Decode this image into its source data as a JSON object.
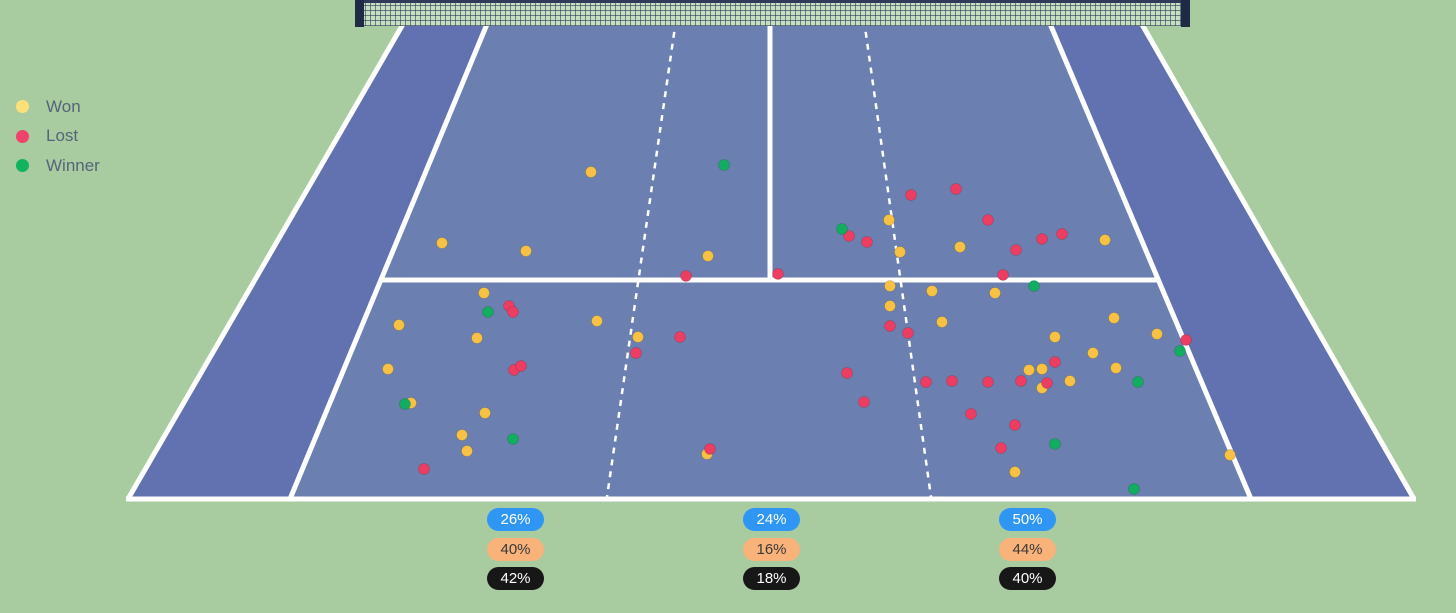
{
  "legend": [
    {
      "label": "Won",
      "color": "#fde077"
    },
    {
      "label": "Lost",
      "color": "#f0436b"
    },
    {
      "label": "Winner",
      "color": "#10b35f"
    }
  ],
  "colors": {
    "background": "#a9cba0",
    "court": "#6272b0",
    "service_box": "#6b82b0",
    "lines": "#ffffff",
    "net": "#2f3a5a",
    "won_dot": "#f7c244",
    "lost_dot": "#ee3d62",
    "winner_dot": "#13ad62"
  },
  "zones": [
    {
      "name": "left",
      "pills": [
        {
          "text": "26%",
          "bg": "#2f96f3",
          "fg": "#ffffff"
        },
        {
          "text": "40%",
          "bg": "#f8b27a",
          "fg": "#3a3a3a"
        },
        {
          "text": "42%",
          "bg": "#171717",
          "fg": "#ffffff"
        }
      ]
    },
    {
      "name": "middle",
      "pills": [
        {
          "text": "24%",
          "bg": "#2f96f3",
          "fg": "#ffffff"
        },
        {
          "text": "16%",
          "bg": "#f8b27a",
          "fg": "#3a3a3a"
        },
        {
          "text": "18%",
          "bg": "#171717",
          "fg": "#ffffff"
        }
      ]
    },
    {
      "name": "right",
      "pills": [
        {
          "text": "50%",
          "bg": "#2f96f3",
          "fg": "#ffffff"
        },
        {
          "text": "44%",
          "bg": "#f8b27a",
          "fg": "#3a3a3a"
        },
        {
          "text": "40%",
          "bg": "#171717",
          "fg": "#ffffff"
        }
      ]
    }
  ],
  "chart_data": {
    "type": "scatter",
    "legend_placement": "top-left",
    "series": [
      {
        "name": "Won",
        "points": [
          [
            591,
            172
          ],
          [
            442,
            243
          ],
          [
            526,
            251
          ],
          [
            708,
            256
          ],
          [
            889,
            220
          ],
          [
            900,
            252
          ],
          [
            960,
            247
          ],
          [
            1105,
            240
          ],
          [
            484,
            293
          ],
          [
            399,
            325
          ],
          [
            477,
            338
          ],
          [
            597,
            321
          ],
          [
            638,
            337
          ],
          [
            388,
            369
          ],
          [
            411,
            403
          ],
          [
            485,
            413
          ],
          [
            462,
            435
          ],
          [
            467,
            451
          ],
          [
            707,
            454
          ],
          [
            890,
            286
          ],
          [
            890,
            306
          ],
          [
            932,
            291
          ],
          [
            942,
            322
          ],
          [
            995,
            293
          ],
          [
            1055,
            337
          ],
          [
            1114,
            318
          ],
          [
            1157,
            334
          ],
          [
            1093,
            353
          ],
          [
            1116,
            368
          ],
          [
            1029,
            370
          ],
          [
            1042,
            369
          ],
          [
            1042,
            388
          ],
          [
            1070,
            381
          ],
          [
            1230,
            455
          ],
          [
            1015,
            472
          ]
        ]
      },
      {
        "name": "Lost",
        "points": [
          [
            911,
            195
          ],
          [
            956,
            189
          ],
          [
            988,
            220
          ],
          [
            849,
            236
          ],
          [
            867,
            242
          ],
          [
            1016,
            250
          ],
          [
            1042,
            239
          ],
          [
            1062,
            234
          ],
          [
            686,
            276
          ],
          [
            778,
            274
          ],
          [
            1003,
            275
          ],
          [
            509,
            306
          ],
          [
            513,
            312
          ],
          [
            680,
            337
          ],
          [
            636,
            353
          ],
          [
            514,
            370
          ],
          [
            521,
            366
          ],
          [
            424,
            469
          ],
          [
            710,
            449
          ],
          [
            890,
            326
          ],
          [
            908,
            333
          ],
          [
            847,
            373
          ],
          [
            864,
            402
          ],
          [
            926,
            382
          ],
          [
            952,
            381
          ],
          [
            988,
            382
          ],
          [
            1021,
            381
          ],
          [
            1047,
            383
          ],
          [
            1055,
            362
          ],
          [
            971,
            414
          ],
          [
            1015,
            425
          ],
          [
            1001,
            448
          ],
          [
            1186,
            340
          ]
        ]
      },
      {
        "name": "Winner",
        "points": [
          [
            724,
            165
          ],
          [
            842,
            229
          ],
          [
            488,
            312
          ],
          [
            405,
            404
          ],
          [
            513,
            439
          ],
          [
            1034,
            286
          ],
          [
            1180,
            351
          ],
          [
            1138,
            382
          ],
          [
            1055,
            444
          ],
          [
            1134,
            489
          ]
        ]
      }
    ]
  }
}
